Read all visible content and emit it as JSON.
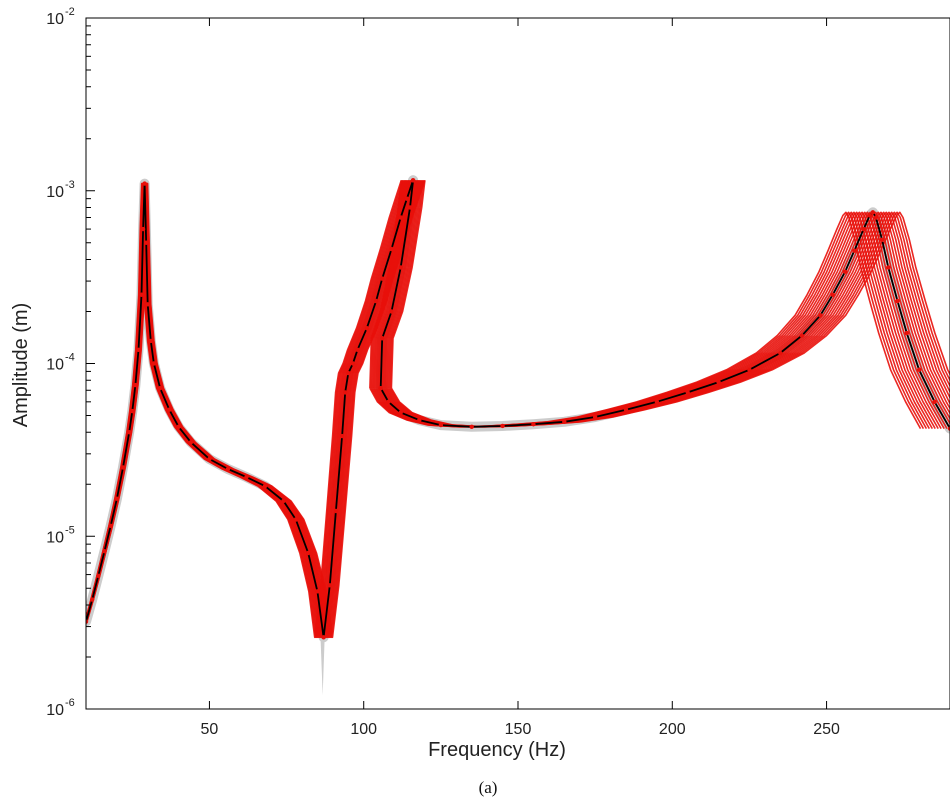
{
  "chart_data": {
    "type": "line",
    "xlabel": "Frequency (Hz)",
    "ylabel": "Amplitude (m)",
    "caption": "(a)",
    "yscale": "log",
    "xlim": [
      10,
      290
    ],
    "ylim": [
      1e-06,
      0.01
    ],
    "xticks": [
      {
        "value": 50,
        "label": "50"
      },
      {
        "value": 100,
        "label": "100"
      },
      {
        "value": 150,
        "label": "150"
      },
      {
        "value": 200,
        "label": "200"
      },
      {
        "value": 250,
        "label": "250"
      }
    ],
    "yticks": [
      {
        "value": 1e-06,
        "base": "10",
        "exp": "-6"
      },
      {
        "value": 1e-05,
        "base": "10",
        "exp": "-5"
      },
      {
        "value": 0.0001,
        "base": "10",
        "exp": "-4"
      },
      {
        "value": 0.001,
        "base": "10",
        "exp": "-3"
      },
      {
        "value": 0.01,
        "base": "10",
        "exp": "-2"
      }
    ],
    "grid": false,
    "colors": {
      "mean": "#000000",
      "samples": "#e8100a",
      "envelope": "#cccccc"
    },
    "series": [
      {
        "role": "mean-response",
        "x": [
          10,
          12,
          14,
          16,
          18,
          20,
          22,
          24,
          25,
          26,
          27,
          28,
          28.5,
          29,
          29.5,
          30,
          31,
          32,
          34,
          37,
          40,
          44,
          50,
          56,
          62,
          68,
          74,
          78,
          82,
          85,
          87,
          89,
          91,
          93,
          94,
          95,
          96.5,
          98,
          101,
          104,
          106,
          109,
          112,
          114,
          116,
          118,
          120,
          122,
          124,
          126,
          105.5,
          105.5,
          108,
          112,
          118,
          125,
          135,
          145,
          155,
          165,
          175,
          185,
          195,
          205,
          215,
          225,
          235,
          242,
          248,
          252,
          256,
          259,
          262,
          264,
          265,
          266,
          268,
          270,
          273,
          276,
          280,
          285,
          290
        ],
        "y": [
          3.2e-06,
          4.3e-06,
          5.9e-06,
          8.2e-06,
          1.15e-05,
          1.65e-05,
          2.5e-05,
          4e-05,
          5.3e-05,
          7.5e-05,
          0.00012,
          0.00025,
          0.0006,
          0.0011,
          0.0005,
          0.00022,
          0.000135,
          0.0001,
          7.2e-05,
          5.4e-05,
          4.3e-05,
          3.5e-05,
          2.8e-05,
          2.45e-05,
          2.2e-05,
          1.95e-05,
          1.6e-05,
          1.25e-05,
          8e-06,
          4.8e-06,
          2.6e-06,
          5.2e-06,
          1.4e-05,
          3.8e-05,
          6.8e-05,
          8.8e-05,
          0.0001,
          0.00012,
          0.00016,
          0.00023,
          0.00031,
          0.00046,
          0.0007,
          0.0009,
          0.00115,
          null,
          null,
          null,
          null,
          null,
          null,
          7.2e-05,
          6e-05,
          5.2e-05,
          4.7e-05,
          4.4e-05,
          4.3e-05,
          4.35e-05,
          4.45e-05,
          4.6e-05,
          4.9e-05,
          5.4e-05,
          6e-05,
          6.8e-05,
          7.8e-05,
          9.2e-05,
          0.000115,
          0.000145,
          0.00019,
          0.00025,
          0.00034,
          0.00045,
          0.0006,
          0.00072,
          0.00075,
          0.0007,
          0.00052,
          0.00036,
          0.00023,
          0.00015,
          9.2e-05,
          6e-05,
          4.2e-05
        ]
      },
      {
        "role": "mean-response-lower-branch",
        "x": [
          116,
          115,
          112,
          109,
          106,
          105.5
        ],
        "y": [
          0.00115,
          0.0008,
          0.00036,
          0.0002,
          0.00014,
          7.2e-05
        ]
      }
    ]
  }
}
